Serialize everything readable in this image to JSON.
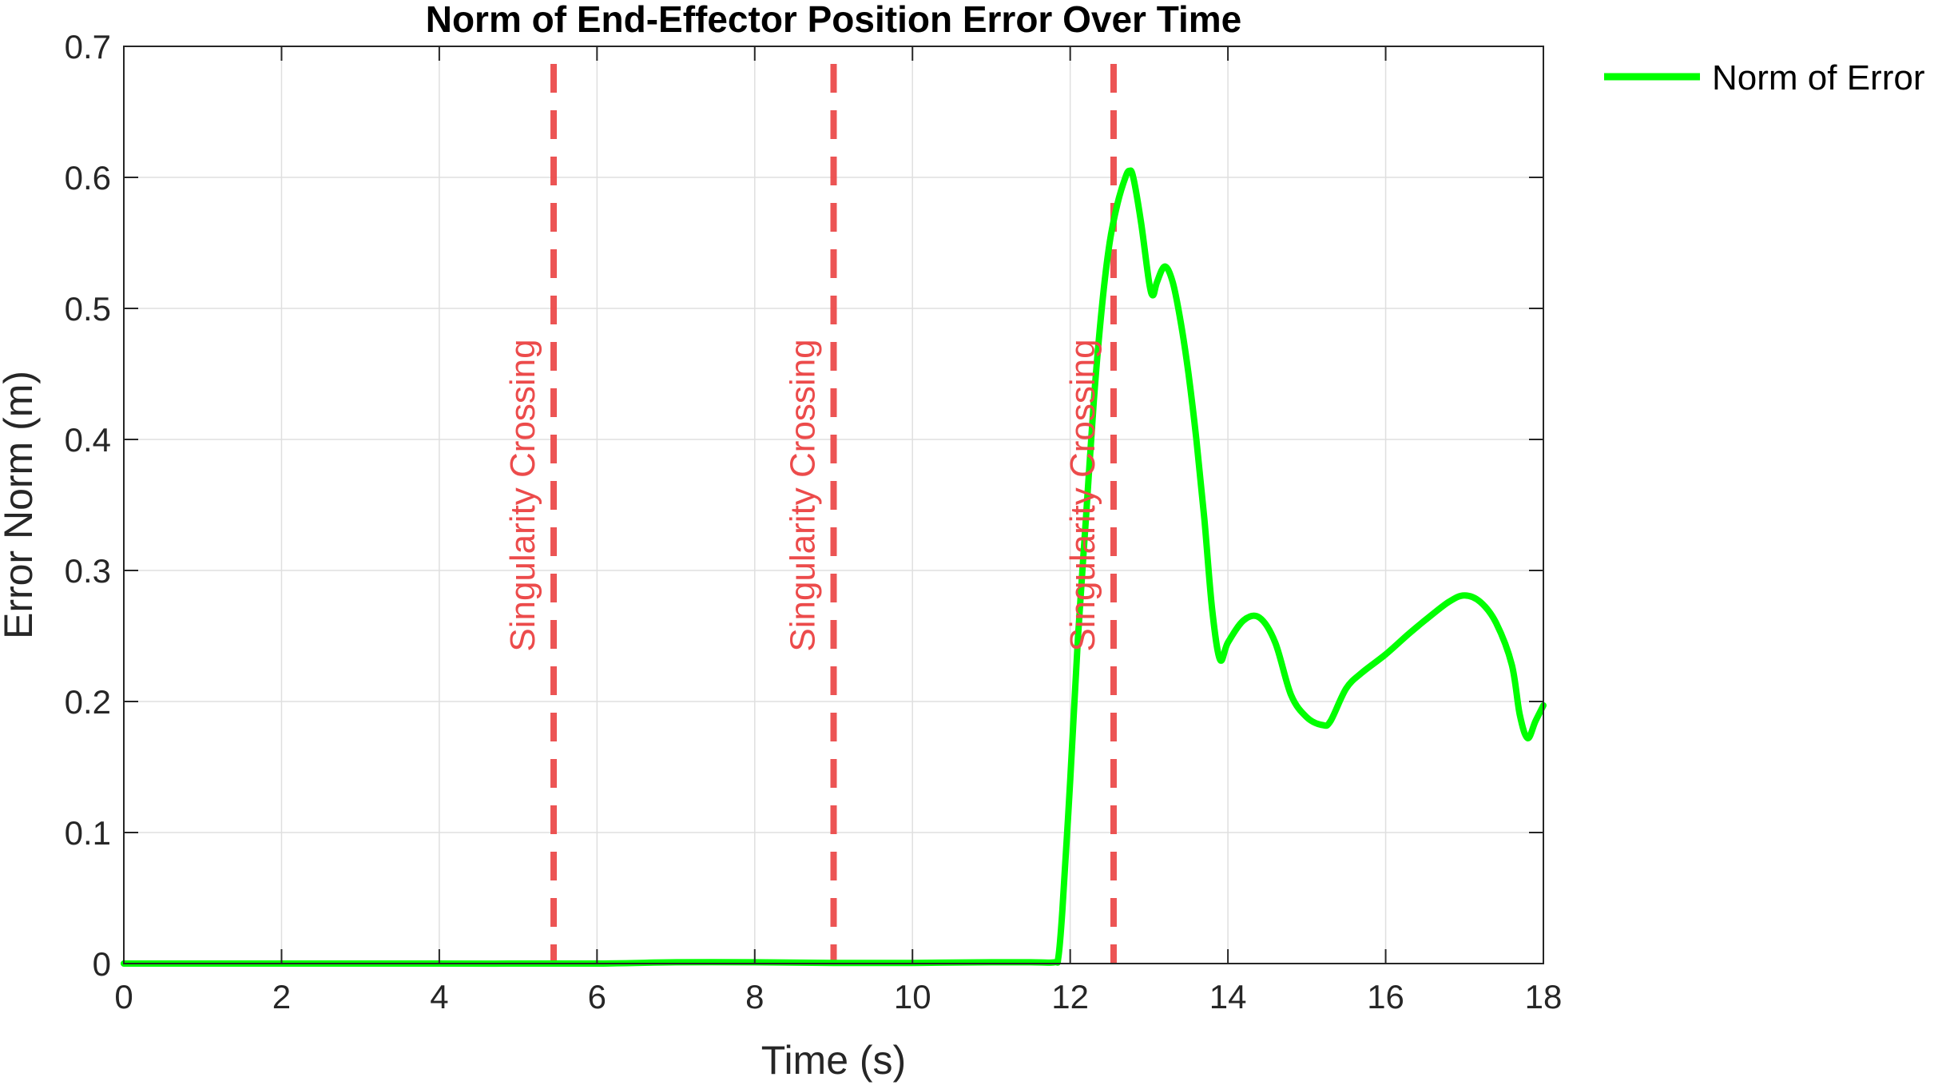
{
  "chart_data": {
    "type": "line",
    "title": "Norm of End-Effector Position Error Over Time",
    "xlabel": "Time (s)",
    "ylabel": "Error Norm (m)",
    "xlim": [
      0,
      18
    ],
    "ylim": [
      0,
      0.7
    ],
    "xticks": [
      0,
      2,
      4,
      6,
      8,
      10,
      12,
      14,
      16,
      18
    ],
    "yticks": [
      0,
      0.1,
      0.2,
      0.3,
      0.4,
      0.5,
      0.6,
      0.7
    ],
    "ytick_labels": [
      "0",
      "0.1",
      "0.2",
      "0.3",
      "0.4",
      "0.5",
      "0.6",
      "0.7"
    ],
    "grid": true,
    "legend": {
      "placement": "outside-top-right",
      "entries": [
        "Norm of Error"
      ]
    },
    "series": [
      {
        "name": "Norm of Error",
        "color": "#00ff00",
        "x": [
          0,
          2,
          4,
          6,
          7,
          8,
          9,
          10,
          11,
          11.5,
          11.8,
          11.85,
          11.9,
          12.0,
          12.1,
          12.2,
          12.3,
          12.4,
          12.5,
          12.6,
          12.7,
          12.75,
          12.8,
          12.9,
          13.0,
          13.05,
          13.1,
          13.2,
          13.3,
          13.4,
          13.5,
          13.6,
          13.7,
          13.8,
          13.9,
          14.0,
          14.2,
          14.4,
          14.6,
          14.8,
          15.0,
          15.2,
          15.3,
          15.5,
          15.7,
          16.0,
          16.3,
          16.5,
          16.8,
          17.0,
          17.2,
          17.4,
          17.6,
          17.7,
          17.8,
          17.9,
          18.0
        ],
        "y": [
          0,
          0,
          0,
          0,
          0.001,
          0.001,
          0.0005,
          0.0005,
          0.001,
          0.001,
          0.001,
          0.005,
          0.04,
          0.14,
          0.25,
          0.34,
          0.43,
          0.5,
          0.55,
          0.58,
          0.6,
          0.605,
          0.6,
          0.565,
          0.52,
          0.51,
          0.52,
          0.532,
          0.52,
          0.49,
          0.45,
          0.4,
          0.34,
          0.27,
          0.232,
          0.245,
          0.262,
          0.264,
          0.245,
          0.205,
          0.188,
          0.182,
          0.185,
          0.21,
          0.222,
          0.236,
          0.252,
          0.262,
          0.276,
          0.281,
          0.276,
          0.26,
          0.228,
          0.19,
          0.172,
          0.185,
          0.197
        ]
      }
    ],
    "annotations": [
      {
        "type": "vline",
        "x": 5.45,
        "label": "Singularity Crossing",
        "color": "#ec4b4b",
        "style": "dashed"
      },
      {
        "type": "vline",
        "x": 9.0,
        "label": "Singularity Crossing",
        "color": "#ec4b4b",
        "style": "dashed"
      },
      {
        "type": "vline",
        "x": 12.55,
        "label": "Singularity Crossing",
        "color": "#ec4b4b",
        "style": "dashed"
      }
    ]
  }
}
